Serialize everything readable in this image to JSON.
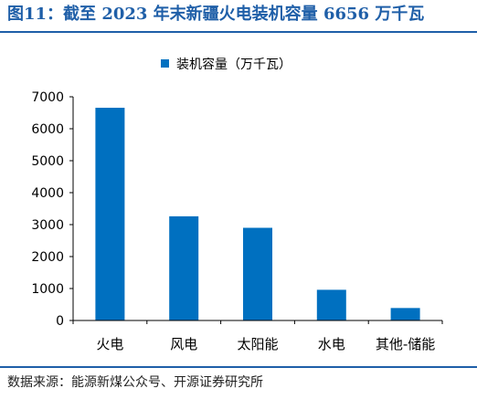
{
  "figure": {
    "title": "图11：截至 2023 年末新疆火电装机容量 6656 万千瓦",
    "source": "数据来源：能源新煤公众号、开源证券研究所"
  },
  "chart_data": {
    "type": "bar",
    "title": "",
    "xlabel": "",
    "ylabel": "",
    "categories": [
      "火电",
      "风电",
      "太阳能",
      "水电",
      "其他-储能"
    ],
    "series": [
      {
        "name": "装机容量（万千瓦）",
        "values": [
          6656,
          3260,
          2900,
          960,
          390
        ],
        "color": "#0070c0"
      }
    ],
    "ylim": [
      0,
      7000
    ],
    "yticks": [
      0,
      1000,
      2000,
      3000,
      4000,
      5000,
      6000,
      7000
    ],
    "legend_position": "top-center",
    "grid": false
  }
}
